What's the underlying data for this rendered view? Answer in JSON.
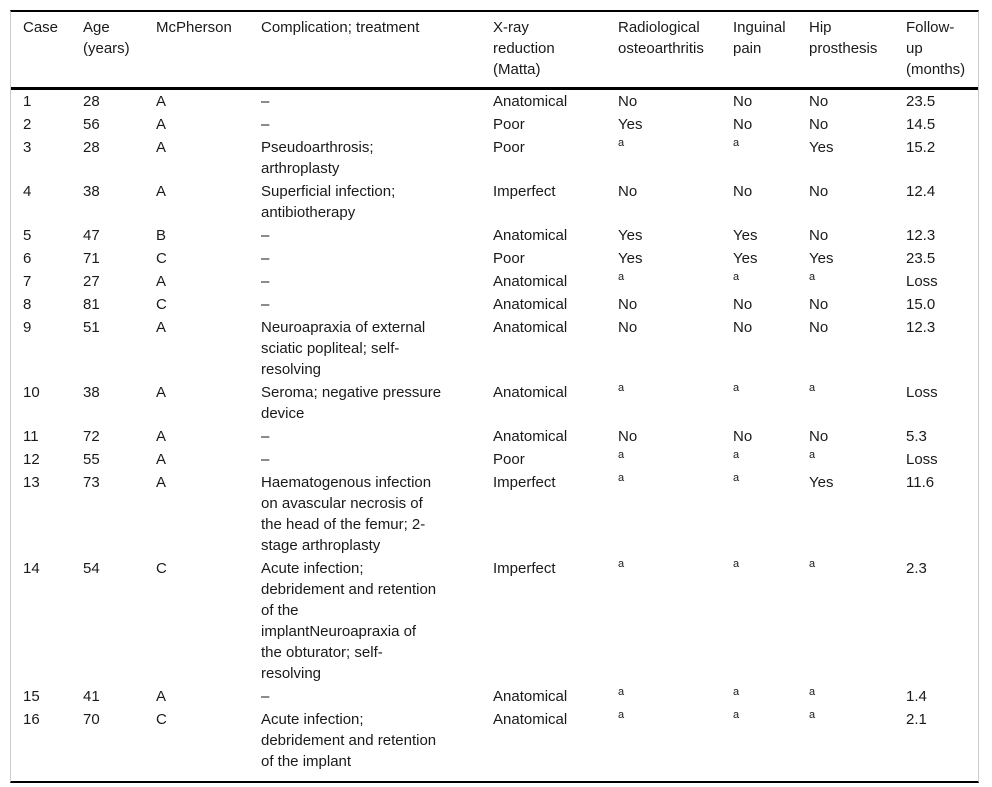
{
  "colors": {
    "rule_color": "#000000",
    "frame_border_color": "#cccccc",
    "text_color": "#1a1a1a"
  },
  "table": {
    "footnote_marker": "a",
    "columns": [
      {
        "key": "case",
        "label": "Case"
      },
      {
        "key": "age",
        "label": "Age\n(years)"
      },
      {
        "key": "mcpherson",
        "label": "McPherson"
      },
      {
        "key": "complication",
        "label": "Complication; treatment"
      },
      {
        "key": "xray",
        "label": "X-ray\nreduction\n(Matta)"
      },
      {
        "key": "radiological",
        "label": "Radiological\nosteoarthritis"
      },
      {
        "key": "inguinal",
        "label": "Inguinal\npain"
      },
      {
        "key": "hip",
        "label": "Hip\nprosthesis"
      },
      {
        "key": "followup",
        "label": "Follow-\nup\n(months)"
      }
    ],
    "rows": [
      {
        "case": "1",
        "age": "28",
        "mcpherson": "A",
        "complication": "–",
        "xray": "Anatomical",
        "radiological": "No",
        "inguinal": "No",
        "hip": "No",
        "followup": "23.5"
      },
      {
        "case": "2",
        "age": "56",
        "mcpherson": "A",
        "complication": "–",
        "xray": "Poor",
        "radiological": "Yes",
        "inguinal": "No",
        "hip": "No",
        "followup": "14.5"
      },
      {
        "case": "3",
        "age": "28",
        "mcpherson": "A",
        "complication": "Pseudoarthrosis;\narthroplasty",
        "xray": "Poor",
        "radiological": "a",
        "inguinal": "a",
        "hip": "Yes",
        "followup": "15.2"
      },
      {
        "case": "4",
        "age": "38",
        "mcpherson": "A",
        "complication": "Superficial infection;\nantibiotherapy",
        "xray": "Imperfect",
        "radiological": "No",
        "inguinal": "No",
        "hip": "No",
        "followup": "12.4"
      },
      {
        "case": "5",
        "age": "47",
        "mcpherson": "B",
        "complication": "–",
        "xray": "Anatomical",
        "radiological": "Yes",
        "inguinal": "Yes",
        "hip": "No",
        "followup": "12.3"
      },
      {
        "case": "6",
        "age": "71",
        "mcpherson": "C",
        "complication": "–",
        "xray": "Poor",
        "radiological": "Yes",
        "inguinal": "Yes",
        "hip": "Yes",
        "followup": "23.5"
      },
      {
        "case": "7",
        "age": "27",
        "mcpherson": "A",
        "complication": "–",
        "xray": "Anatomical",
        "radiological": "a",
        "inguinal": "a",
        "hip": "a",
        "followup": "Loss"
      },
      {
        "case": "8",
        "age": "81",
        "mcpherson": "C",
        "complication": "–",
        "xray": "Anatomical",
        "radiological": "No",
        "inguinal": "No",
        "hip": "No",
        "followup": "15.0"
      },
      {
        "case": "9",
        "age": "51",
        "mcpherson": "A",
        "complication": "Neuroapraxia of external\nsciatic popliteal; self-\nresolving",
        "xray": "Anatomical",
        "radiological": "No",
        "inguinal": "No",
        "hip": "No",
        "followup": "12.3"
      },
      {
        "case": "10",
        "age": "38",
        "mcpherson": "A",
        "complication": "Seroma; negative pressure\ndevice",
        "xray": "Anatomical",
        "radiological": "a",
        "inguinal": "a",
        "hip": "a",
        "followup": "Loss"
      },
      {
        "case": "11",
        "age": "72",
        "mcpherson": "A",
        "complication": "–",
        "xray": "Anatomical",
        "radiological": "No",
        "inguinal": "No",
        "hip": "No",
        "followup": "5.3"
      },
      {
        "case": "12",
        "age": "55",
        "mcpherson": "A",
        "complication": "–",
        "xray": "Poor",
        "radiological": "a",
        "inguinal": "a",
        "hip": "a",
        "followup": "Loss"
      },
      {
        "case": "13",
        "age": "73",
        "mcpherson": "A",
        "complication": "Haematogenous infection\non avascular necrosis of\nthe head of the femur; 2-\nstage arthroplasty",
        "xray": "Imperfect",
        "radiological": "a",
        "inguinal": "a",
        "hip": "Yes",
        "followup": "11.6"
      },
      {
        "case": "14",
        "age": "54",
        "mcpherson": "C",
        "complication": "Acute infection;\ndebridement and retention\nof the\nimplantNeuroapraxia of\nthe obturator; self-\nresolving",
        "xray": "Imperfect",
        "radiological": "a",
        "inguinal": "a",
        "hip": "a",
        "followup": "2.3"
      },
      {
        "case": "15",
        "age": "41",
        "mcpherson": "A",
        "complication": "–",
        "xray": "Anatomical",
        "radiological": "a",
        "inguinal": "a",
        "hip": "a",
        "followup": "1.4"
      },
      {
        "case": "16",
        "age": "70",
        "mcpherson": "C",
        "complication": "Acute infection;\ndebridement and retention\nof the implant",
        "xray": "Anatomical",
        "radiological": "a",
        "inguinal": "a",
        "hip": "a",
        "followup": "2.1"
      }
    ]
  }
}
